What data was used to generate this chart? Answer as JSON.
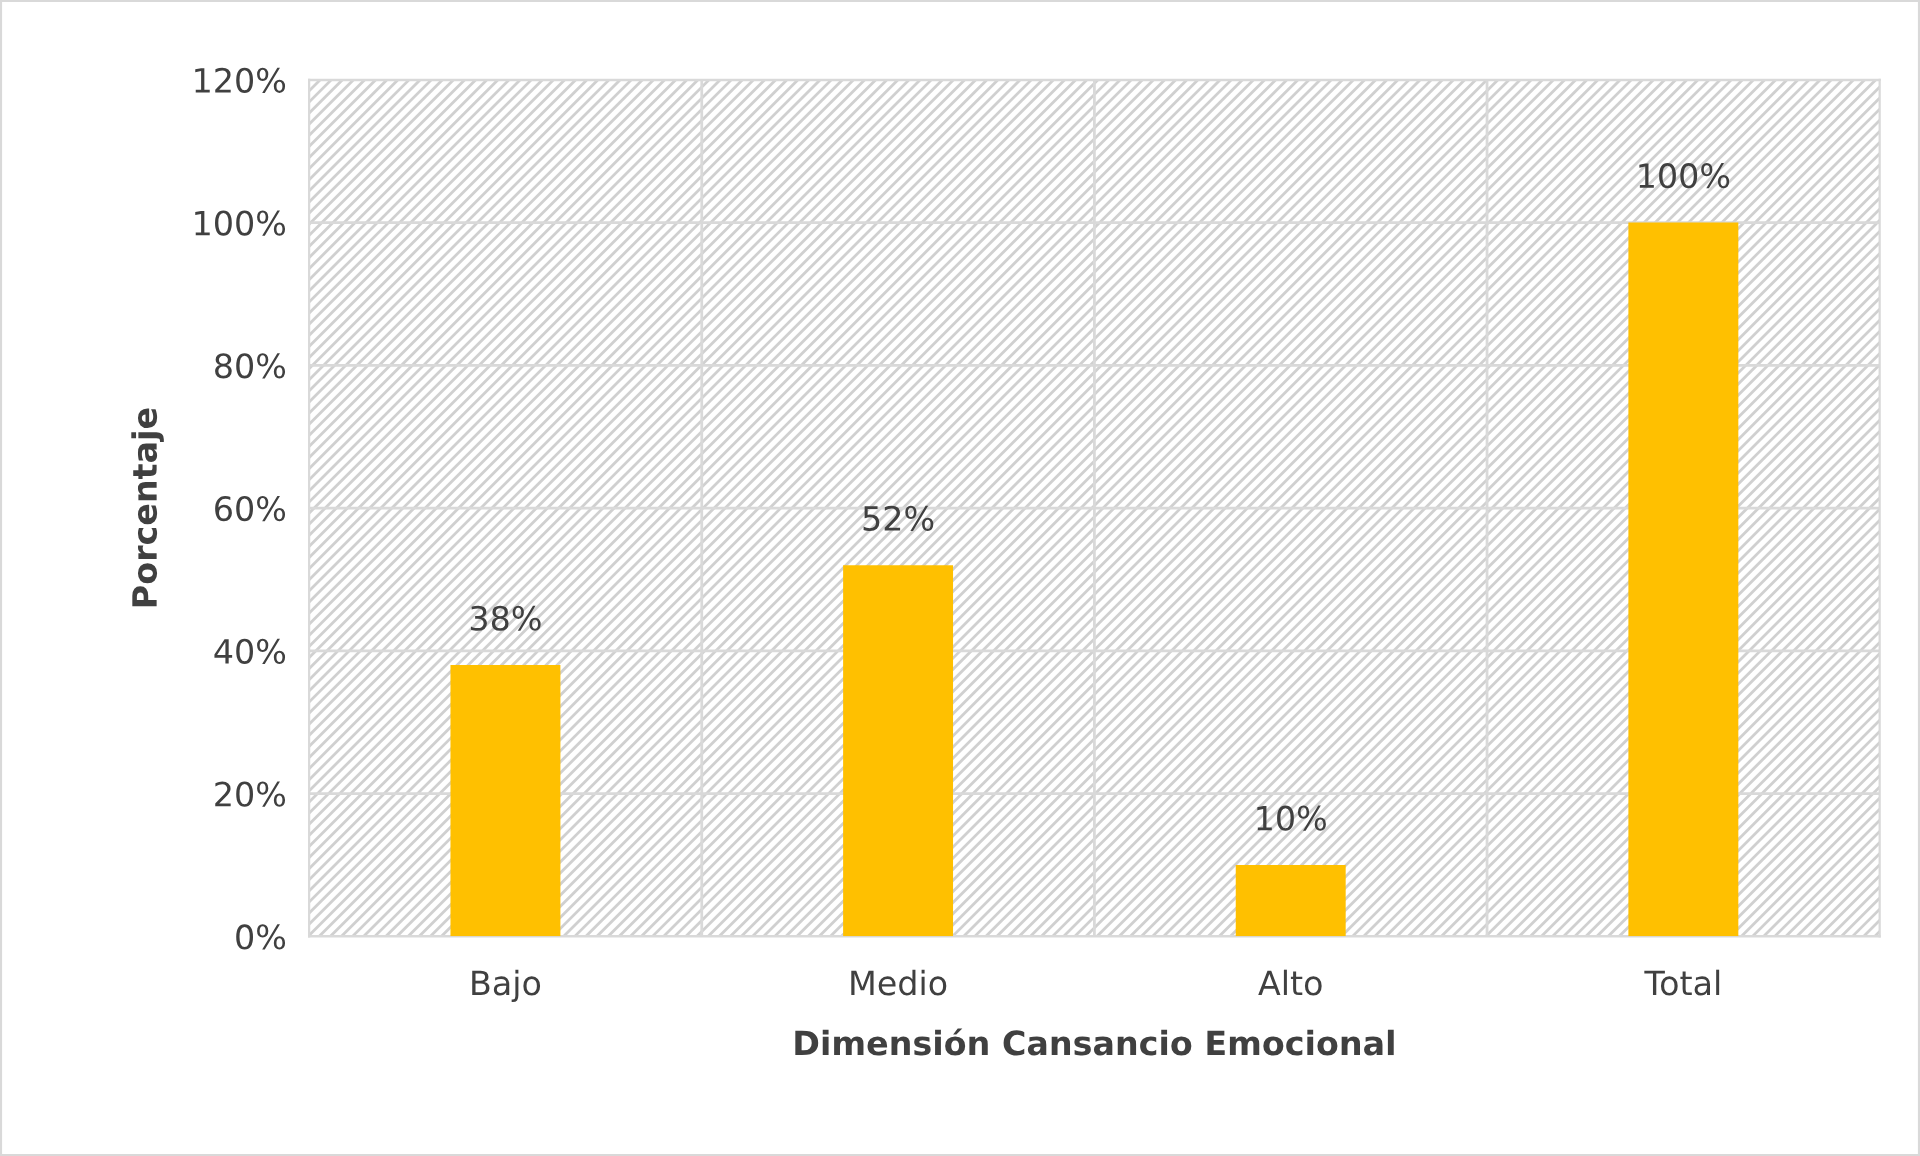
{
  "chart_data": {
    "type": "bar",
    "xlabel": "Dimensión Cansancio Emocional",
    "ylabel": "Porcentaje",
    "categories": [
      "Bajo",
      "Medio",
      "Alto",
      "Total"
    ],
    "values": [
      38,
      52,
      10,
      100
    ],
    "color": "#ffc000",
    "value_labels": [
      "38%",
      "52%",
      "10%",
      "100%"
    ],
    "ylim": [
      0,
      120
    ],
    "yticks": [
      {
        "value": 0,
        "label": "0%"
      },
      {
        "value": 20,
        "label": "20%"
      },
      {
        "value": 40,
        "label": "40%"
      },
      {
        "value": 60,
        "label": "60%"
      },
      {
        "value": 80,
        "label": "80%"
      },
      {
        "value": 100,
        "label": "100%"
      },
      {
        "value": 120,
        "label": "120%"
      }
    ],
    "grid": true
  }
}
